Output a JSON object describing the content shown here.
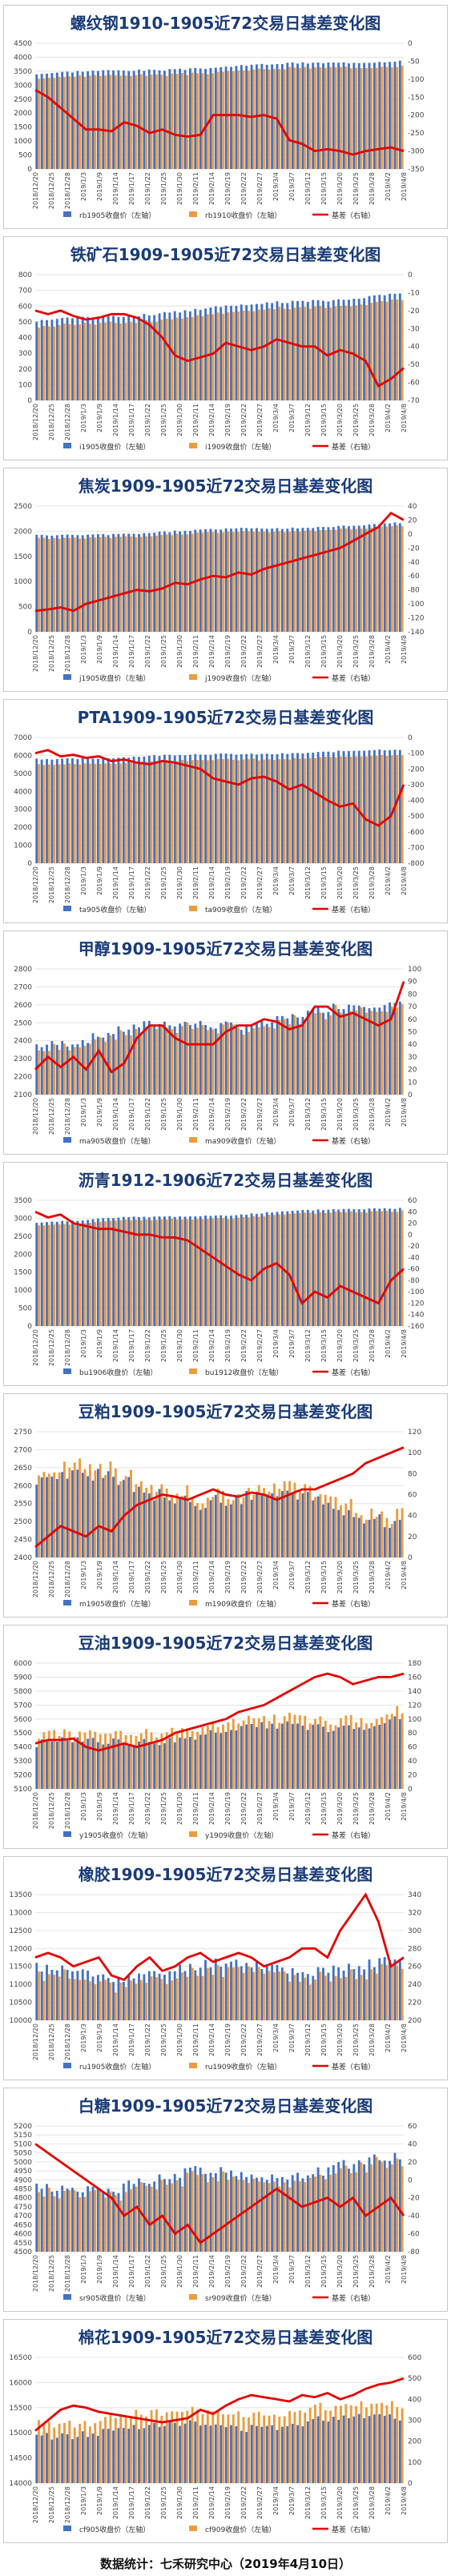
{
  "x_labels": [
    "2018/12/20",
    "2018/12/25",
    "2018/12/28",
    "2019/1/3",
    "2019/1/9",
    "2019/1/14",
    "2019/1/17",
    "2019/1/22",
    "2019/1/25",
    "2019/1/30",
    "2019/2/11",
    "2019/2/14",
    "2019/2/19",
    "2019/2/22",
    "2019/2/27",
    "2019/3/4",
    "2019/3/7",
    "2019/3/12",
    "2019/3/15",
    "2019/3/20",
    "2019/3/25",
    "2019/3/28",
    "2019/4/2",
    "2019/4/8"
  ],
  "colors": {
    "near": "#4472c4",
    "far": "#ed9b40",
    "basis": "#e30000",
    "title": "#1a3b78"
  },
  "chart_data": [
    {
      "type": "bar+line",
      "title": "螺纹钢1910-1905近72交易日基差变化图",
      "legend": [
        "rb1905收盘价（左轴）",
        "rb1910收盘价（左轴）",
        "基差（右轴）"
      ],
      "y_left": {
        "min": 0,
        "max": 4500,
        "step": 500
      },
      "y_right": {
        "min": -350,
        "max": 0,
        "step": 50
      },
      "near_start": 3400,
      "near_end": 3900,
      "near_noise": 60,
      "far_gap": -170,
      "basis": [
        -130,
        -150,
        -180,
        -210,
        -240,
        -240,
        -245,
        -220,
        -230,
        -250,
        -240,
        -255,
        -260,
        -255,
        -200,
        -200,
        -200,
        -205,
        -200,
        -210,
        -270,
        -280,
        -300,
        -295,
        -300,
        -310,
        -300,
        -295,
        -290,
        -300
      ]
    },
    {
      "type": "bar+line",
      "title": "铁矿石1909-1905近72交易日基差变化图",
      "legend": [
        "i1905收盘价（左轴）",
        "i1909收盘价（左轴）",
        "基差（右轴）"
      ],
      "y_left": {
        "min": 0,
        "max": 800,
        "step": 100
      },
      "y_right": {
        "min": -70,
        "max": 0,
        "step": 10
      },
      "near_start": 500,
      "near_end": 680,
      "near_noise": 15,
      "far_gap": -40,
      "basis": [
        -20,
        -22,
        -20,
        -23,
        -25,
        -24,
        -22,
        -22,
        -24,
        -28,
        -35,
        -45,
        -48,
        -46,
        -44,
        -38,
        -40,
        -42,
        -40,
        -36,
        -38,
        -40,
        -40,
        -45,
        -42,
        -44,
        -48,
        -62,
        -58,
        -52
      ]
    },
    {
      "type": "bar+line",
      "title": "焦炭1909-1905近72交易日基差变化图",
      "legend": [
        "j1905收盘价（左轴）",
        "j1909收盘价（左轴）",
        "基差（右轴）"
      ],
      "y_left": {
        "min": 0,
        "max": 2500,
        "step": 500
      },
      "y_right": {
        "min": -140,
        "max": 40,
        "step": 20
      },
      "near_start": 1900,
      "near_end": 2150,
      "near_noise": 30,
      "far_gap": -60,
      "basis": [
        -110,
        -108,
        -105,
        -110,
        -100,
        -95,
        -90,
        -85,
        -80,
        -82,
        -78,
        -70,
        -72,
        -65,
        -60,
        -62,
        -55,
        -58,
        -50,
        -45,
        -40,
        -35,
        -30,
        -25,
        -20,
        -10,
        0,
        10,
        30,
        20
      ]
    },
    {
      "type": "bar+line",
      "title": "PTA1909-1905近72交易日基差变化图",
      "legend": [
        "ta905收盘价（左轴）",
        "ta909收盘价（左轴）",
        "基差（右轴）"
      ],
      "y_left": {
        "min": 0,
        "max": 7000,
        "step": 1000
      },
      "y_right": {
        "min": -800,
        "max": 0,
        "step": 100
      },
      "near_start": 5800,
      "near_end": 6300,
      "near_noise": 80,
      "far_gap": -300,
      "basis": [
        -100,
        -80,
        -120,
        -110,
        -130,
        -120,
        -150,
        -140,
        -160,
        -170,
        -150,
        -160,
        -180,
        -200,
        -260,
        -280,
        -300,
        -260,
        -250,
        -280,
        -330,
        -300,
        -350,
        -400,
        -440,
        -420,
        -520,
        -560,
        -500,
        -300
      ]
    },
    {
      "type": "bar+line",
      "title": "甲醇1909-1905近72交易日基差变化图",
      "legend": [
        "ma905收盘价（左轴）",
        "ma909收盘价（左轴）",
        "基差（右轴）"
      ],
      "y_left": {
        "min": 2100,
        "max": 2800,
        "step": 100
      },
      "y_right": {
        "min": 0,
        "max": 100,
        "step": 10
      },
      "near_start": 2400,
      "near_end": 2600,
      "near_noise": 50,
      "far_gap": -20,
      "basis": [
        20,
        30,
        22,
        30,
        20,
        35,
        18,
        25,
        45,
        55,
        55,
        45,
        40,
        40,
        40,
        50,
        55,
        55,
        60,
        58,
        52,
        55,
        70,
        70,
        62,
        65,
        60,
        55,
        60,
        90
      ]
    },
    {
      "type": "bar+line",
      "title": "沥青1912-1906近72交易日基差变化图",
      "legend": [
        "bu1906收盘价（左轴）",
        "bu1912收盘价（左轴）",
        "基差（右轴）"
      ],
      "y_left": {
        "min": 0,
        "max": 3500,
        "step": 500
      },
      "y_right": {
        "min": -160,
        "max": 60,
        "step": 20
      },
      "near_start": 2900,
      "near_end": 3300,
      "near_noise": 40,
      "far_gap": -80,
      "basis": [
        40,
        30,
        35,
        20,
        15,
        10,
        10,
        5,
        0,
        0,
        -5,
        -5,
        -10,
        -25,
        -40,
        -55,
        -70,
        -80,
        -60,
        -50,
        -70,
        -120,
        -100,
        -110,
        -90,
        -100,
        -110,
        -120,
        -80,
        -60
      ]
    },
    {
      "type": "bar+line",
      "title": "豆粕1909-1905近72交易日基差变化图",
      "legend": [
        "m1905收盘价（左轴）",
        "m1909收盘价（左轴）",
        "基差（右轴）"
      ],
      "y_left": {
        "min": 2400,
        "max": 2750,
        "step": 50
      },
      "y_right": {
        "min": 0,
        "max": 120,
        "step": 20
      },
      "near_start": 2620,
      "near_end": 2520,
      "near_noise": 40,
      "far_gap": 20,
      "basis": [
        10,
        20,
        30,
        25,
        20,
        30,
        25,
        40,
        50,
        55,
        60,
        58,
        55,
        60,
        65,
        60,
        58,
        62,
        60,
        55,
        60,
        65,
        65,
        70,
        75,
        80,
        90,
        95,
        100,
        105
      ]
    },
    {
      "type": "bar+line",
      "title": "豆油1909-1905近72交易日基差变化图",
      "legend": [
        "y1905收盘价（左轴）",
        "y1909收盘价（左轴）",
        "基差（右轴）"
      ],
      "y_left": {
        "min": 5100,
        "max": 6000,
        "step": 100
      },
      "y_right": {
        "min": 0,
        "max": 180,
        "step": 20
      },
      "near_start": 5400,
      "near_end": 5600,
      "near_noise": 60,
      "far_gap": 60,
      "basis": [
        65,
        70,
        70,
        72,
        60,
        55,
        60,
        65,
        60,
        65,
        70,
        80,
        85,
        90,
        95,
        100,
        110,
        115,
        120,
        130,
        140,
        150,
        160,
        165,
        160,
        150,
        155,
        160,
        160,
        165
      ]
    },
    {
      "type": "bar+line",
      "title": "橡胶1909-1905近72交易日基差变化图",
      "legend": [
        "ru1905收盘价（左轴）",
        "ru1909收盘价（左轴）",
        "基差（右轴）"
      ],
      "y_left": {
        "min": 10000,
        "max": 13500,
        "step": 500
      },
      "y_right": {
        "min": 200,
        "max": 340,
        "step": 20
      },
      "near_start": 11300,
      "near_end": 11600,
      "near_noise": 300,
      "far_gap": -200,
      "basis": [
        270,
        275,
        270,
        260,
        265,
        270,
        250,
        245,
        260,
        270,
        255,
        260,
        270,
        275,
        265,
        270,
        275,
        270,
        260,
        265,
        270,
        280,
        280,
        270,
        300,
        320,
        340,
        310,
        260,
        270
      ]
    },
    {
      "type": "bar+line",
      "title": "白糖1909-1905近72交易日基差变化图",
      "legend": [
        "sr905收盘价（左轴）",
        "sr909收盘价（左轴）",
        "基差（右轴）"
      ],
      "y_left": {
        "min": 4500,
        "max": 5200,
        "step": 50
      },
      "y_right": {
        "min": -80,
        "max": 60,
        "step": 20
      },
      "near_start": 4850,
      "near_end": 5000,
      "near_noise": 60,
      "far_gap": -30,
      "basis": [
        40,
        30,
        20,
        10,
        0,
        -10,
        -20,
        -40,
        -30,
        -50,
        -40,
        -60,
        -50,
        -70,
        -60,
        -50,
        -40,
        -30,
        -20,
        -10,
        -20,
        -30,
        -25,
        -20,
        -30,
        -20,
        -40,
        -30,
        -20,
        -40
      ]
    },
    {
      "type": "bar+line",
      "title": "棉花1909-1905近72交易日基差变化图",
      "legend": [
        "cf905收盘价（左轴）",
        "cf909收盘价（左轴）",
        "基差（右轴）"
      ],
      "y_left": {
        "min": 14000,
        "max": 16500,
        "step": 500
      },
      "y_right": {
        "min": 0,
        "max": 600,
        "step": 100
      },
      "near_start": 15000,
      "near_end": 15300,
      "near_noise": 150,
      "far_gap": 250,
      "basis": [
        250,
        300,
        350,
        370,
        360,
        340,
        330,
        320,
        310,
        300,
        290,
        300,
        310,
        350,
        330,
        370,
        400,
        420,
        410,
        400,
        390,
        420,
        410,
        430,
        400,
        420,
        450,
        470,
        480,
        500
      ]
    }
  ],
  "footer": {
    "text": "数据统计：七禾研究中心（2019年4月10日）"
  }
}
